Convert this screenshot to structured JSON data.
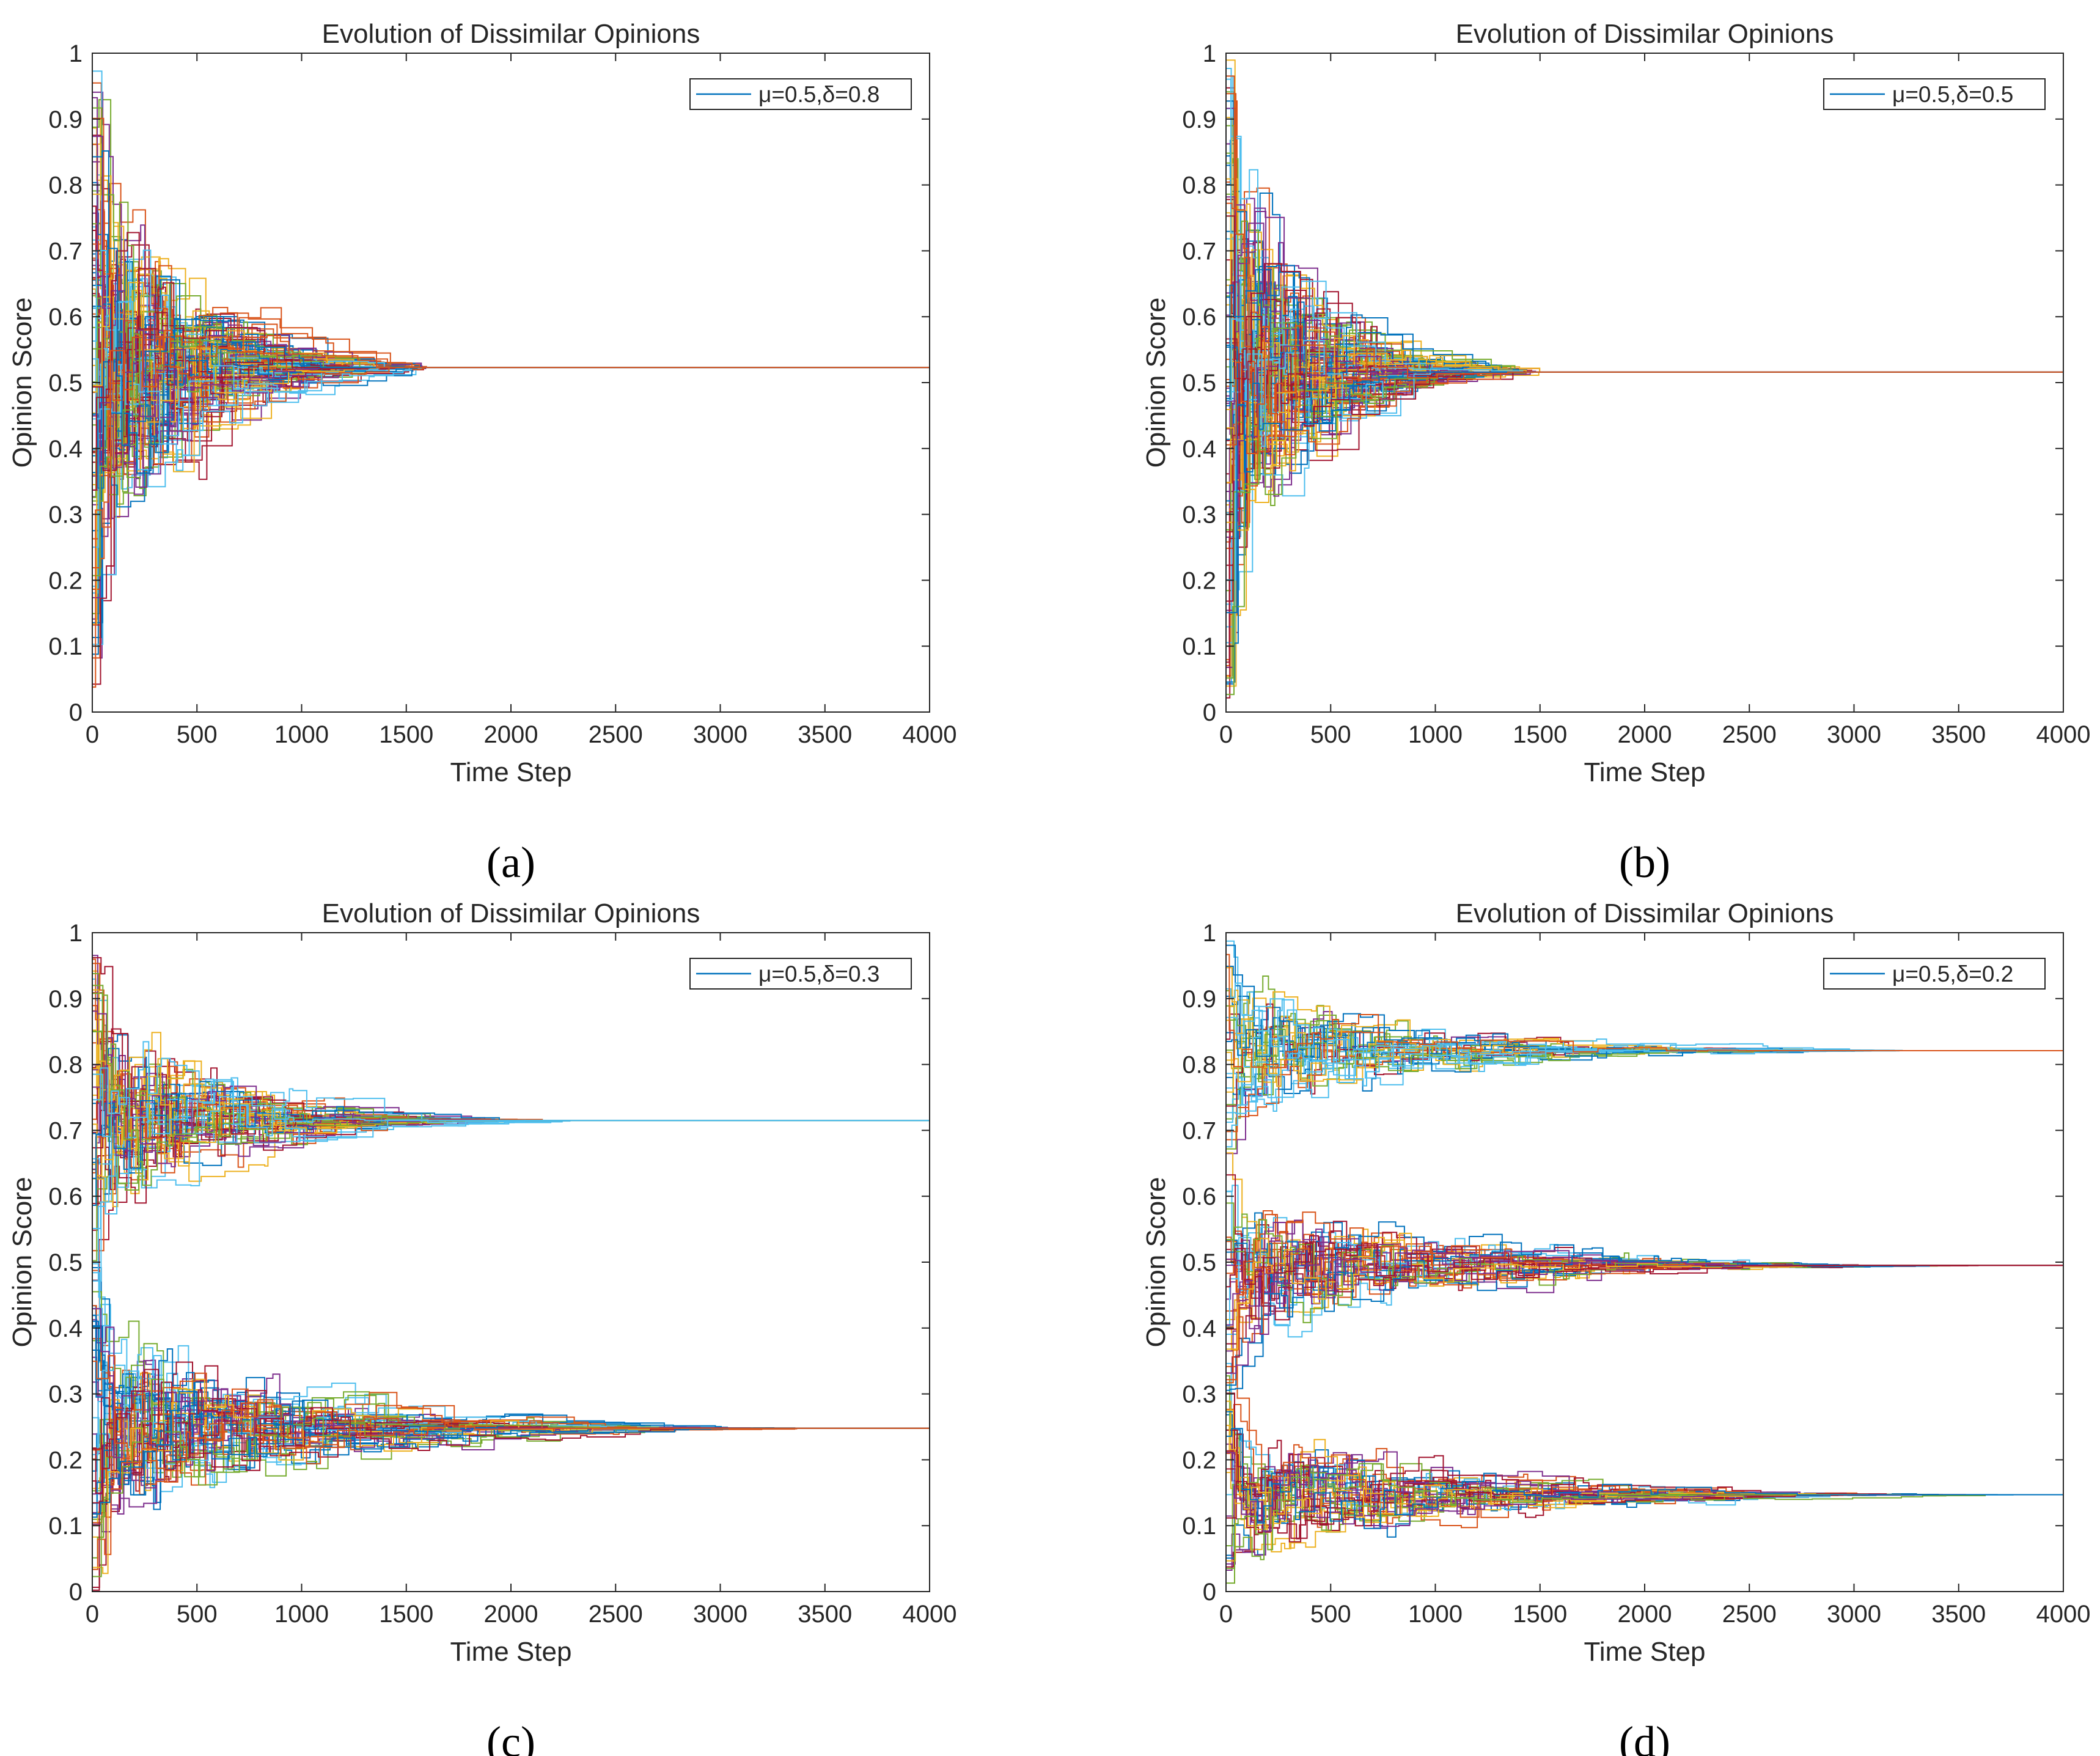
{
  "figure": {
    "colors": [
      "#0072BD",
      "#D95319",
      "#EDB120",
      "#7E2F8E",
      "#77AC30",
      "#4DBEEE",
      "#A2142F"
    ],
    "frame_color": "#262626"
  },
  "chart_data": [
    {
      "panel": "a",
      "type": "line",
      "title": "Evolution of Dissimilar Opinions",
      "xlabel": "Time Step",
      "ylabel": "Opinion Score",
      "xlim": [
        0,
        4000
      ],
      "ylim": [
        0,
        1
      ],
      "xticks": [
        0,
        500,
        1000,
        1500,
        2000,
        2500,
        3000,
        3500,
        4000
      ],
      "yticks": [
        0,
        0.1,
        0.2,
        0.3,
        0.4,
        0.5,
        0.6,
        0.7,
        0.8,
        0.9,
        1
      ],
      "legend": {
        "label": "μ=0.5,δ=0.8",
        "position": "top-right"
      },
      "caption": "(a)",
      "n_agents": 100,
      "clusters": [
        {
          "value": 0.523,
          "converge_step": 1600,
          "spread": [
            0.02,
            0.98
          ]
        }
      ]
    },
    {
      "panel": "b",
      "type": "line",
      "title": "Evolution of Dissimilar Opinions",
      "xlabel": "Time Step",
      "ylabel": "Opinion Score",
      "xlim": [
        0,
        4000
      ],
      "ylim": [
        0,
        1
      ],
      "xticks": [
        0,
        500,
        1000,
        1500,
        2000,
        2500,
        3000,
        3500,
        4000
      ],
      "yticks": [
        0,
        0.1,
        0.2,
        0.3,
        0.4,
        0.5,
        0.6,
        0.7,
        0.8,
        0.9,
        1
      ],
      "legend": {
        "label": "μ=0.5,δ=0.5",
        "position": "top-right"
      },
      "caption": "(b)",
      "n_agents": 100,
      "clusters": [
        {
          "value": 0.516,
          "converge_step": 1500,
          "spread": [
            0.01,
            0.99
          ]
        }
      ]
    },
    {
      "panel": "c",
      "type": "line",
      "title": "Evolution of Dissimilar Opinions",
      "xlabel": "Time Step",
      "ylabel": "Opinion Score",
      "xlim": [
        0,
        4000
      ],
      "ylim": [
        0,
        1
      ],
      "xticks": [
        0,
        500,
        1000,
        1500,
        2000,
        2500,
        3000,
        3500,
        4000
      ],
      "yticks": [
        0,
        0.1,
        0.2,
        0.3,
        0.4,
        0.5,
        0.6,
        0.7,
        0.8,
        0.9,
        1
      ],
      "legend": {
        "label": "μ=0.5,δ=0.3",
        "position": "top-right"
      },
      "caption": "(c)",
      "n_agents": 100,
      "clusters": [
        {
          "value": 0.715,
          "converge_step": 2300,
          "spread": [
            0.45,
            0.98
          ]
        },
        {
          "value": 0.248,
          "converge_step": 3400,
          "spread": [
            0.0,
            0.5
          ]
        }
      ]
    },
    {
      "panel": "d",
      "type": "line",
      "title": "Evolution of Dissimilar Opinions",
      "xlabel": "Time Step",
      "ylabel": "Opinion Score",
      "xlim": [
        0,
        4000
      ],
      "ylim": [
        0,
        1
      ],
      "xticks": [
        0,
        500,
        1000,
        1500,
        2000,
        2500,
        3000,
        3500,
        4000
      ],
      "yticks": [
        0,
        0.1,
        0.2,
        0.3,
        0.4,
        0.5,
        0.6,
        0.7,
        0.8,
        0.9,
        1
      ],
      "legend": {
        "label": "μ=0.5,δ=0.2",
        "position": "top-right"
      },
      "caption": "(d)",
      "n_agents": 100,
      "clusters": [
        {
          "value": 0.821,
          "converge_step": 3300,
          "spread": [
            0.65,
            0.99
          ]
        },
        {
          "value": 0.495,
          "converge_step": 3600,
          "spread": [
            0.3,
            0.68
          ]
        },
        {
          "value": 0.147,
          "converge_step": 3800,
          "spread": [
            0.01,
            0.35
          ]
        }
      ]
    }
  ]
}
